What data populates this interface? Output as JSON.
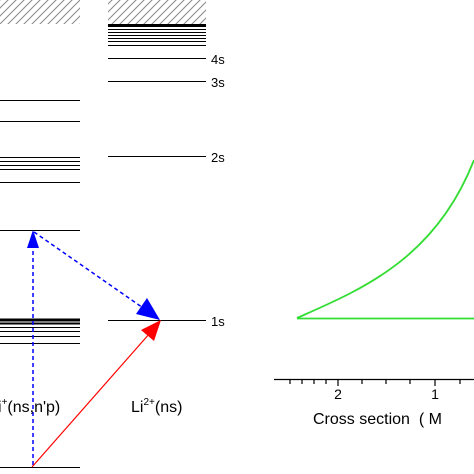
{
  "left_column": {
    "label_prefix": "i",
    "label_charge": "+",
    "label_suffix": "(ns,n'p)"
  },
  "right_column": {
    "label_prefix": "Li",
    "label_charge": "2+",
    "label_suffix": "(ns)",
    "levels": [
      {
        "label": "4s"
      },
      {
        "label": "3s"
      },
      {
        "label": "2s"
      },
      {
        "label": "1s"
      }
    ]
  },
  "axis": {
    "label": "Cross section  ( M",
    "ticks": [
      "2",
      "1"
    ]
  },
  "colors": {
    "level_line": "#000000",
    "excitation_arrow": "#0000ff",
    "transfer_arrow": "#0000ff",
    "ionization_arrow": "#ff0000",
    "cross_section_curve": "#33dd33"
  }
}
